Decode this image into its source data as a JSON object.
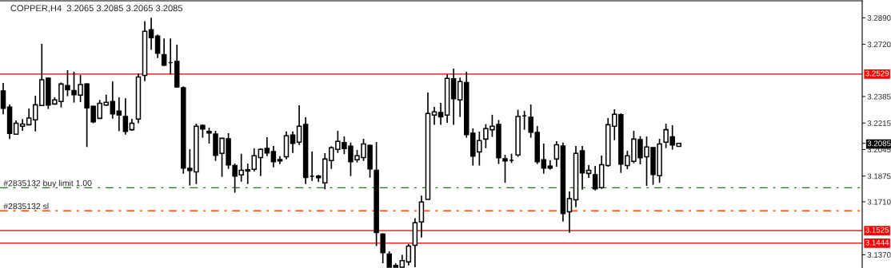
{
  "chart_data": {
    "type": "candlestick",
    "title": "COPPER,H4  3.2065 3.2085 3.2065 3.2085",
    "categories": [
      null,
      null,
      null,
      null,
      null,
      null,
      null,
      null,
      null,
      null,
      null,
      null,
      null,
      null,
      null,
      null,
      null,
      null,
      null,
      null,
      null,
      null,
      null,
      null,
      null,
      null,
      null,
      null,
      null,
      null,
      null,
      null,
      null,
      null,
      null,
      null,
      null,
      null,
      null,
      null,
      null,
      null,
      null,
      null,
      null,
      null,
      null,
      null,
      null,
      null,
      null,
      null,
      null,
      null,
      null,
      null,
      null,
      null,
      null,
      null,
      null,
      null,
      null,
      null,
      null,
      null,
      null,
      null,
      null,
      null,
      null,
      null,
      null,
      null,
      null,
      null,
      null,
      null,
      null,
      null,
      null,
      null,
      null,
      null,
      null,
      null,
      null,
      null,
      null,
      null,
      null,
      null,
      null,
      null,
      null,
      null,
      null,
      null,
      null,
      null,
      null,
      null,
      null,
      null,
      null,
      null,
      null,
      null,
      null,
      null,
      null,
      null,
      null,
      null,
      null,
      null,
      null,
      null,
      null,
      null,
      null,
      null,
      null,
      null,
      null,
      null,
      null,
      null,
      null,
      null,
      null,
      null,
      null,
      null
    ],
    "ohlc": [
      [
        3.2421,
        3.2472,
        3.2271,
        3.231
      ],
      [
        3.2317,
        3.2334,
        3.2112,
        3.2148
      ],
      [
        3.2143,
        3.2232,
        3.2143,
        3.2214
      ],
      [
        3.2194,
        3.224,
        3.2165,
        3.2209
      ],
      [
        3.2204,
        3.2308,
        3.2204,
        3.2247
      ],
      [
        3.2235,
        3.239,
        3.2161,
        3.2332
      ],
      [
        3.2327,
        3.2723,
        3.2327,
        3.2493
      ],
      [
        3.2503,
        3.2506,
        3.2305,
        3.233
      ],
      [
        3.2337,
        3.238,
        3.2332,
        3.2363
      ],
      [
        3.2353,
        3.2475,
        3.2315,
        3.2465
      ],
      [
        3.2455,
        3.2554,
        3.2387,
        3.2429
      ],
      [
        3.2423,
        3.2544,
        3.2346,
        3.2397
      ],
      [
        3.2394,
        3.2523,
        3.2349,
        3.2462
      ],
      [
        3.2465,
        3.247,
        3.2061,
        3.2312
      ],
      [
        3.2322,
        3.2326,
        3.2214,
        3.2223
      ],
      [
        3.2245,
        3.2363,
        3.2245,
        3.2342
      ],
      [
        3.233,
        3.2397,
        3.2326,
        3.2348
      ],
      [
        3.2353,
        3.2482,
        3.2243,
        3.2274
      ],
      [
        3.2291,
        3.238,
        3.2163,
        3.2266
      ],
      [
        3.2257,
        3.2373,
        3.2141,
        3.2161
      ],
      [
        3.2172,
        3.2242,
        3.2165,
        3.2214
      ],
      [
        3.224,
        3.2532,
        3.2214,
        3.251
      ],
      [
        3.2521,
        3.2868,
        3.2484,
        3.2803
      ],
      [
        3.2813,
        3.289,
        3.2684,
        3.2762
      ],
      [
        3.2772,
        3.2783,
        3.2632,
        3.2663
      ],
      [
        3.2654,
        3.2757,
        3.2581,
        3.2586
      ],
      [
        3.2603,
        3.2757,
        3.2527,
        3.2603
      ],
      [
        3.261,
        3.2718,
        3.2441,
        3.2446
      ],
      [
        3.2441,
        3.245,
        3.189,
        3.1926
      ],
      [
        3.1924,
        3.2047,
        3.1814,
        3.1911
      ],
      [
        3.1901,
        3.2211,
        3.1824,
        3.2194
      ],
      [
        3.2199,
        3.2206,
        3.2121,
        3.2177
      ],
      [
        3.2161,
        3.2185,
        3.2083,
        3.2151
      ],
      [
        3.2144,
        3.2165,
        3.1972,
        3.2008
      ],
      [
        3.202,
        3.2119,
        3.187,
        3.2117
      ],
      [
        3.2114,
        3.215,
        3.1921,
        3.1947
      ],
      [
        3.1943,
        3.1955,
        3.1768,
        3.1875
      ],
      [
        3.1882,
        3.2018,
        3.1839,
        3.1912
      ],
      [
        3.1916,
        3.1955,
        3.1824,
        3.1907
      ],
      [
        3.1918,
        3.2052,
        3.1904,
        3.2005
      ],
      [
        3.1994,
        3.2052,
        3.1875,
        3.2046
      ],
      [
        3.2052,
        3.2124,
        3.2003,
        3.2023
      ],
      [
        3.2032,
        3.2068,
        3.1931,
        3.1967
      ],
      [
        3.1981,
        3.2003,
        3.1952,
        3.1972
      ],
      [
        3.1999,
        3.2161,
        3.1982,
        3.2133
      ],
      [
        3.2138,
        3.2161,
        3.2023,
        3.2085
      ],
      [
        3.2092,
        3.2329,
        3.2074,
        3.2194
      ],
      [
        3.2206,
        3.2252,
        3.1824,
        3.1866
      ],
      [
        3.1873,
        3.2032,
        3.1843,
        3.1873
      ],
      [
        3.1875,
        3.1882,
        3.1837,
        3.1865
      ],
      [
        3.1831,
        3.2022,
        3.179,
        3.1984
      ],
      [
        3.1974,
        3.2066,
        3.1921,
        3.2056
      ],
      [
        3.2046,
        3.2165,
        3.2023,
        3.2097
      ],
      [
        3.209,
        3.2129,
        3.2015,
        3.2051
      ],
      [
        3.2066,
        3.209,
        3.1875,
        3.1967
      ],
      [
        3.1979,
        3.2042,
        3.1962,
        3.2005
      ],
      [
        3.1994,
        3.2114,
        3.1972,
        3.2081
      ],
      [
        3.2071,
        3.2076,
        3.1865,
        3.1921
      ],
      [
        3.1912,
        3.2093,
        3.1426,
        3.1513
      ],
      [
        3.1503,
        3.1508,
        3.1315,
        3.1384
      ],
      [
        3.1375,
        3.1392,
        3.129,
        3.129
      ],
      [
        3.1302,
        3.1315,
        3.129,
        3.129
      ],
      [
        3.129,
        3.137,
        3.129,
        3.1332
      ],
      [
        3.1324,
        3.1438,
        3.1302,
        3.1426
      ],
      [
        3.1431,
        3.1605,
        3.129,
        3.1575
      ],
      [
        3.158,
        3.1749,
        3.1481,
        3.1708
      ],
      [
        3.1725,
        3.2411,
        3.1725,
        3.2276
      ],
      [
        3.2266,
        3.2319,
        3.2203,
        3.2286
      ],
      [
        3.2283,
        3.2344,
        3.2203,
        3.2254
      ],
      [
        3.2266,
        3.2527,
        3.2216,
        3.2501
      ],
      [
        3.2499,
        3.2564,
        3.2203,
        3.2371
      ],
      [
        3.2363,
        3.2506,
        3.2254,
        3.2481
      ],
      [
        3.2475,
        3.2544,
        3.2121,
        3.2141
      ],
      [
        3.215,
        3.2181,
        3.1942,
        3.2003
      ],
      [
        3.203,
        3.216,
        3.1942,
        3.2102
      ],
      [
        3.2112,
        3.2208,
        3.2054,
        3.2179
      ],
      [
        3.2172,
        3.2268,
        3.2126,
        3.2194
      ],
      [
        3.2206,
        3.2234,
        3.1952,
        3.1993
      ],
      [
        3.1986,
        3.2011,
        3.1832,
        3.1972
      ],
      [
        3.1976,
        3.2018,
        3.1959,
        3.1976
      ],
      [
        3.201,
        3.23,
        3.1998,
        3.2257
      ],
      [
        3.2261,
        3.2293,
        3.2172,
        3.2261
      ],
      [
        3.2252,
        3.2334,
        3.2121,
        3.2156
      ],
      [
        3.2155,
        3.2196,
        3.1952,
        3.1967
      ],
      [
        3.1979,
        3.2083,
        3.189,
        3.1926
      ],
      [
        3.1938,
        3.1976,
        3.1916,
        3.1926
      ],
      [
        3.1984,
        3.2098,
        3.1935,
        3.2076
      ],
      [
        3.2068,
        3.209,
        3.1583,
        3.1634
      ],
      [
        3.1646,
        3.1776,
        3.1512,
        3.173
      ],
      [
        3.1723,
        3.2068,
        3.1675,
        3.202
      ],
      [
        3.2037,
        3.2068,
        3.1788,
        3.1895
      ],
      [
        3.1892,
        3.1945,
        3.1863,
        3.1912
      ],
      [
        3.1883,
        3.194,
        3.1783,
        3.1793
      ],
      [
        3.18,
        3.2006,
        3.1793,
        3.1948
      ],
      [
        3.1942,
        3.2247,
        3.1935,
        3.2204
      ],
      [
        3.2194,
        3.2303,
        3.2105,
        3.2271
      ],
      [
        3.2268,
        3.2277,
        3.1895,
        3.1952
      ],
      [
        3.1943,
        3.2037,
        3.1919,
        3.2005
      ],
      [
        3.1969,
        3.2165,
        3.1957,
        3.2112
      ],
      [
        3.2109,
        3.2131,
        3.195,
        3.1993
      ],
      [
        3.1999,
        3.2129,
        3.1812,
        3.2061
      ],
      [
        3.2057,
        3.2057,
        3.1819,
        3.1885
      ],
      [
        3.1877,
        3.2114,
        3.1832,
        3.2081
      ],
      [
        3.2092,
        3.2211,
        3.2054,
        3.2172
      ],
      [
        3.2127,
        3.2201,
        3.2044,
        3.2074
      ],
      [
        3.2065,
        3.2085,
        3.2065,
        3.2085
      ],
      null,
      null,
      null,
      null,
      null,
      null,
      null,
      null,
      null,
      null,
      null,
      null,
      null,
      null,
      null,
      null,
      null,
      null,
      null,
      null,
      null,
      null,
      null,
      null,
      null,
      null,
      null,
      null
    ],
    "ylim": [
      3.1285,
      3.2999
    ],
    "yticks": [
      {
        "value": 3.289,
        "label": "3.2890"
      },
      {
        "value": 3.272,
        "label": "3.2720"
      },
      {
        "value": 3.2385,
        "label": "3.2385"
      },
      {
        "value": 3.2215,
        "label": "3.2215"
      },
      {
        "value": 3.2085,
        "label": "3.2085"
      },
      {
        "value": 3.2045,
        "label": "3.2045"
      },
      {
        "value": 3.1875,
        "label": "3.1875"
      },
      {
        "value": 3.171,
        "label": "3.1710"
      },
      {
        "value": 3.137,
        "label": "3.1370"
      }
    ],
    "ref_lines": [
      {
        "axis": "y",
        "value": 3.2529,
        "label": "3.2529",
        "color": "#e00000",
        "line_style": "solid"
      },
      {
        "axis": "y",
        "value": 3.1525,
        "label": "3.1525",
        "color": "#e00000",
        "line_style": "solid"
      },
      {
        "axis": "y",
        "value": 3.1444,
        "label": "3.1444",
        "color": "#e00000",
        "line_style": "solid"
      },
      {
        "axis": "y",
        "value": 3.18,
        "label": "#2835132 buy limit 1.00",
        "color": "#1a7a1a",
        "line_style": "dashed"
      },
      {
        "axis": "y",
        "value": 3.1652,
        "label": "#2835132 sl",
        "color": "#ff4500",
        "line_style": "dashed"
      }
    ],
    "tick_labels": "y",
    "grid": false
  }
}
